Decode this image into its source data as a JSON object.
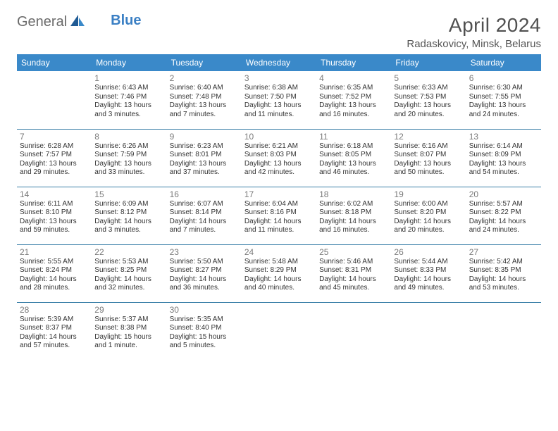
{
  "logo": {
    "part1": "General",
    "part2": "Blue"
  },
  "title": "April 2024",
  "location": "Radaskovicy, Minsk, Belarus",
  "colors": {
    "header_bg": "#3a89c9",
    "header_text": "#ffffff",
    "row_border": "#3a7fa8",
    "daynum": "#7a7a7a",
    "body_text": "#333333",
    "logo_gray": "#6a6a6a",
    "logo_blue": "#3a7fc4"
  },
  "weekdays": [
    "Sunday",
    "Monday",
    "Tuesday",
    "Wednesday",
    "Thursday",
    "Friday",
    "Saturday"
  ],
  "weeks": [
    [
      null,
      {
        "n": "1",
        "sr": "Sunrise: 6:43 AM",
        "ss": "Sunset: 7:46 PM",
        "d1": "Daylight: 13 hours",
        "d2": "and 3 minutes."
      },
      {
        "n": "2",
        "sr": "Sunrise: 6:40 AM",
        "ss": "Sunset: 7:48 PM",
        "d1": "Daylight: 13 hours",
        "d2": "and 7 minutes."
      },
      {
        "n": "3",
        "sr": "Sunrise: 6:38 AM",
        "ss": "Sunset: 7:50 PM",
        "d1": "Daylight: 13 hours",
        "d2": "and 11 minutes."
      },
      {
        "n": "4",
        "sr": "Sunrise: 6:35 AM",
        "ss": "Sunset: 7:52 PM",
        "d1": "Daylight: 13 hours",
        "d2": "and 16 minutes."
      },
      {
        "n": "5",
        "sr": "Sunrise: 6:33 AM",
        "ss": "Sunset: 7:53 PM",
        "d1": "Daylight: 13 hours",
        "d2": "and 20 minutes."
      },
      {
        "n": "6",
        "sr": "Sunrise: 6:30 AM",
        "ss": "Sunset: 7:55 PM",
        "d1": "Daylight: 13 hours",
        "d2": "and 24 minutes."
      }
    ],
    [
      {
        "n": "7",
        "sr": "Sunrise: 6:28 AM",
        "ss": "Sunset: 7:57 PM",
        "d1": "Daylight: 13 hours",
        "d2": "and 29 minutes."
      },
      {
        "n": "8",
        "sr": "Sunrise: 6:26 AM",
        "ss": "Sunset: 7:59 PM",
        "d1": "Daylight: 13 hours",
        "d2": "and 33 minutes."
      },
      {
        "n": "9",
        "sr": "Sunrise: 6:23 AM",
        "ss": "Sunset: 8:01 PM",
        "d1": "Daylight: 13 hours",
        "d2": "and 37 minutes."
      },
      {
        "n": "10",
        "sr": "Sunrise: 6:21 AM",
        "ss": "Sunset: 8:03 PM",
        "d1": "Daylight: 13 hours",
        "d2": "and 42 minutes."
      },
      {
        "n": "11",
        "sr": "Sunrise: 6:18 AM",
        "ss": "Sunset: 8:05 PM",
        "d1": "Daylight: 13 hours",
        "d2": "and 46 minutes."
      },
      {
        "n": "12",
        "sr": "Sunrise: 6:16 AM",
        "ss": "Sunset: 8:07 PM",
        "d1": "Daylight: 13 hours",
        "d2": "and 50 minutes."
      },
      {
        "n": "13",
        "sr": "Sunrise: 6:14 AM",
        "ss": "Sunset: 8:09 PM",
        "d1": "Daylight: 13 hours",
        "d2": "and 54 minutes."
      }
    ],
    [
      {
        "n": "14",
        "sr": "Sunrise: 6:11 AM",
        "ss": "Sunset: 8:10 PM",
        "d1": "Daylight: 13 hours",
        "d2": "and 59 minutes."
      },
      {
        "n": "15",
        "sr": "Sunrise: 6:09 AM",
        "ss": "Sunset: 8:12 PM",
        "d1": "Daylight: 14 hours",
        "d2": "and 3 minutes."
      },
      {
        "n": "16",
        "sr": "Sunrise: 6:07 AM",
        "ss": "Sunset: 8:14 PM",
        "d1": "Daylight: 14 hours",
        "d2": "and 7 minutes."
      },
      {
        "n": "17",
        "sr": "Sunrise: 6:04 AM",
        "ss": "Sunset: 8:16 PM",
        "d1": "Daylight: 14 hours",
        "d2": "and 11 minutes."
      },
      {
        "n": "18",
        "sr": "Sunrise: 6:02 AM",
        "ss": "Sunset: 8:18 PM",
        "d1": "Daylight: 14 hours",
        "d2": "and 16 minutes."
      },
      {
        "n": "19",
        "sr": "Sunrise: 6:00 AM",
        "ss": "Sunset: 8:20 PM",
        "d1": "Daylight: 14 hours",
        "d2": "and 20 minutes."
      },
      {
        "n": "20",
        "sr": "Sunrise: 5:57 AM",
        "ss": "Sunset: 8:22 PM",
        "d1": "Daylight: 14 hours",
        "d2": "and 24 minutes."
      }
    ],
    [
      {
        "n": "21",
        "sr": "Sunrise: 5:55 AM",
        "ss": "Sunset: 8:24 PM",
        "d1": "Daylight: 14 hours",
        "d2": "and 28 minutes."
      },
      {
        "n": "22",
        "sr": "Sunrise: 5:53 AM",
        "ss": "Sunset: 8:25 PM",
        "d1": "Daylight: 14 hours",
        "d2": "and 32 minutes."
      },
      {
        "n": "23",
        "sr": "Sunrise: 5:50 AM",
        "ss": "Sunset: 8:27 PM",
        "d1": "Daylight: 14 hours",
        "d2": "and 36 minutes."
      },
      {
        "n": "24",
        "sr": "Sunrise: 5:48 AM",
        "ss": "Sunset: 8:29 PM",
        "d1": "Daylight: 14 hours",
        "d2": "and 40 minutes."
      },
      {
        "n": "25",
        "sr": "Sunrise: 5:46 AM",
        "ss": "Sunset: 8:31 PM",
        "d1": "Daylight: 14 hours",
        "d2": "and 45 minutes."
      },
      {
        "n": "26",
        "sr": "Sunrise: 5:44 AM",
        "ss": "Sunset: 8:33 PM",
        "d1": "Daylight: 14 hours",
        "d2": "and 49 minutes."
      },
      {
        "n": "27",
        "sr": "Sunrise: 5:42 AM",
        "ss": "Sunset: 8:35 PM",
        "d1": "Daylight: 14 hours",
        "d2": "and 53 minutes."
      }
    ],
    [
      {
        "n": "28",
        "sr": "Sunrise: 5:39 AM",
        "ss": "Sunset: 8:37 PM",
        "d1": "Daylight: 14 hours",
        "d2": "and 57 minutes."
      },
      {
        "n": "29",
        "sr": "Sunrise: 5:37 AM",
        "ss": "Sunset: 8:38 PM",
        "d1": "Daylight: 15 hours",
        "d2": "and 1 minute."
      },
      {
        "n": "30",
        "sr": "Sunrise: 5:35 AM",
        "ss": "Sunset: 8:40 PM",
        "d1": "Daylight: 15 hours",
        "d2": "and 5 minutes."
      },
      null,
      null,
      null,
      null
    ]
  ]
}
